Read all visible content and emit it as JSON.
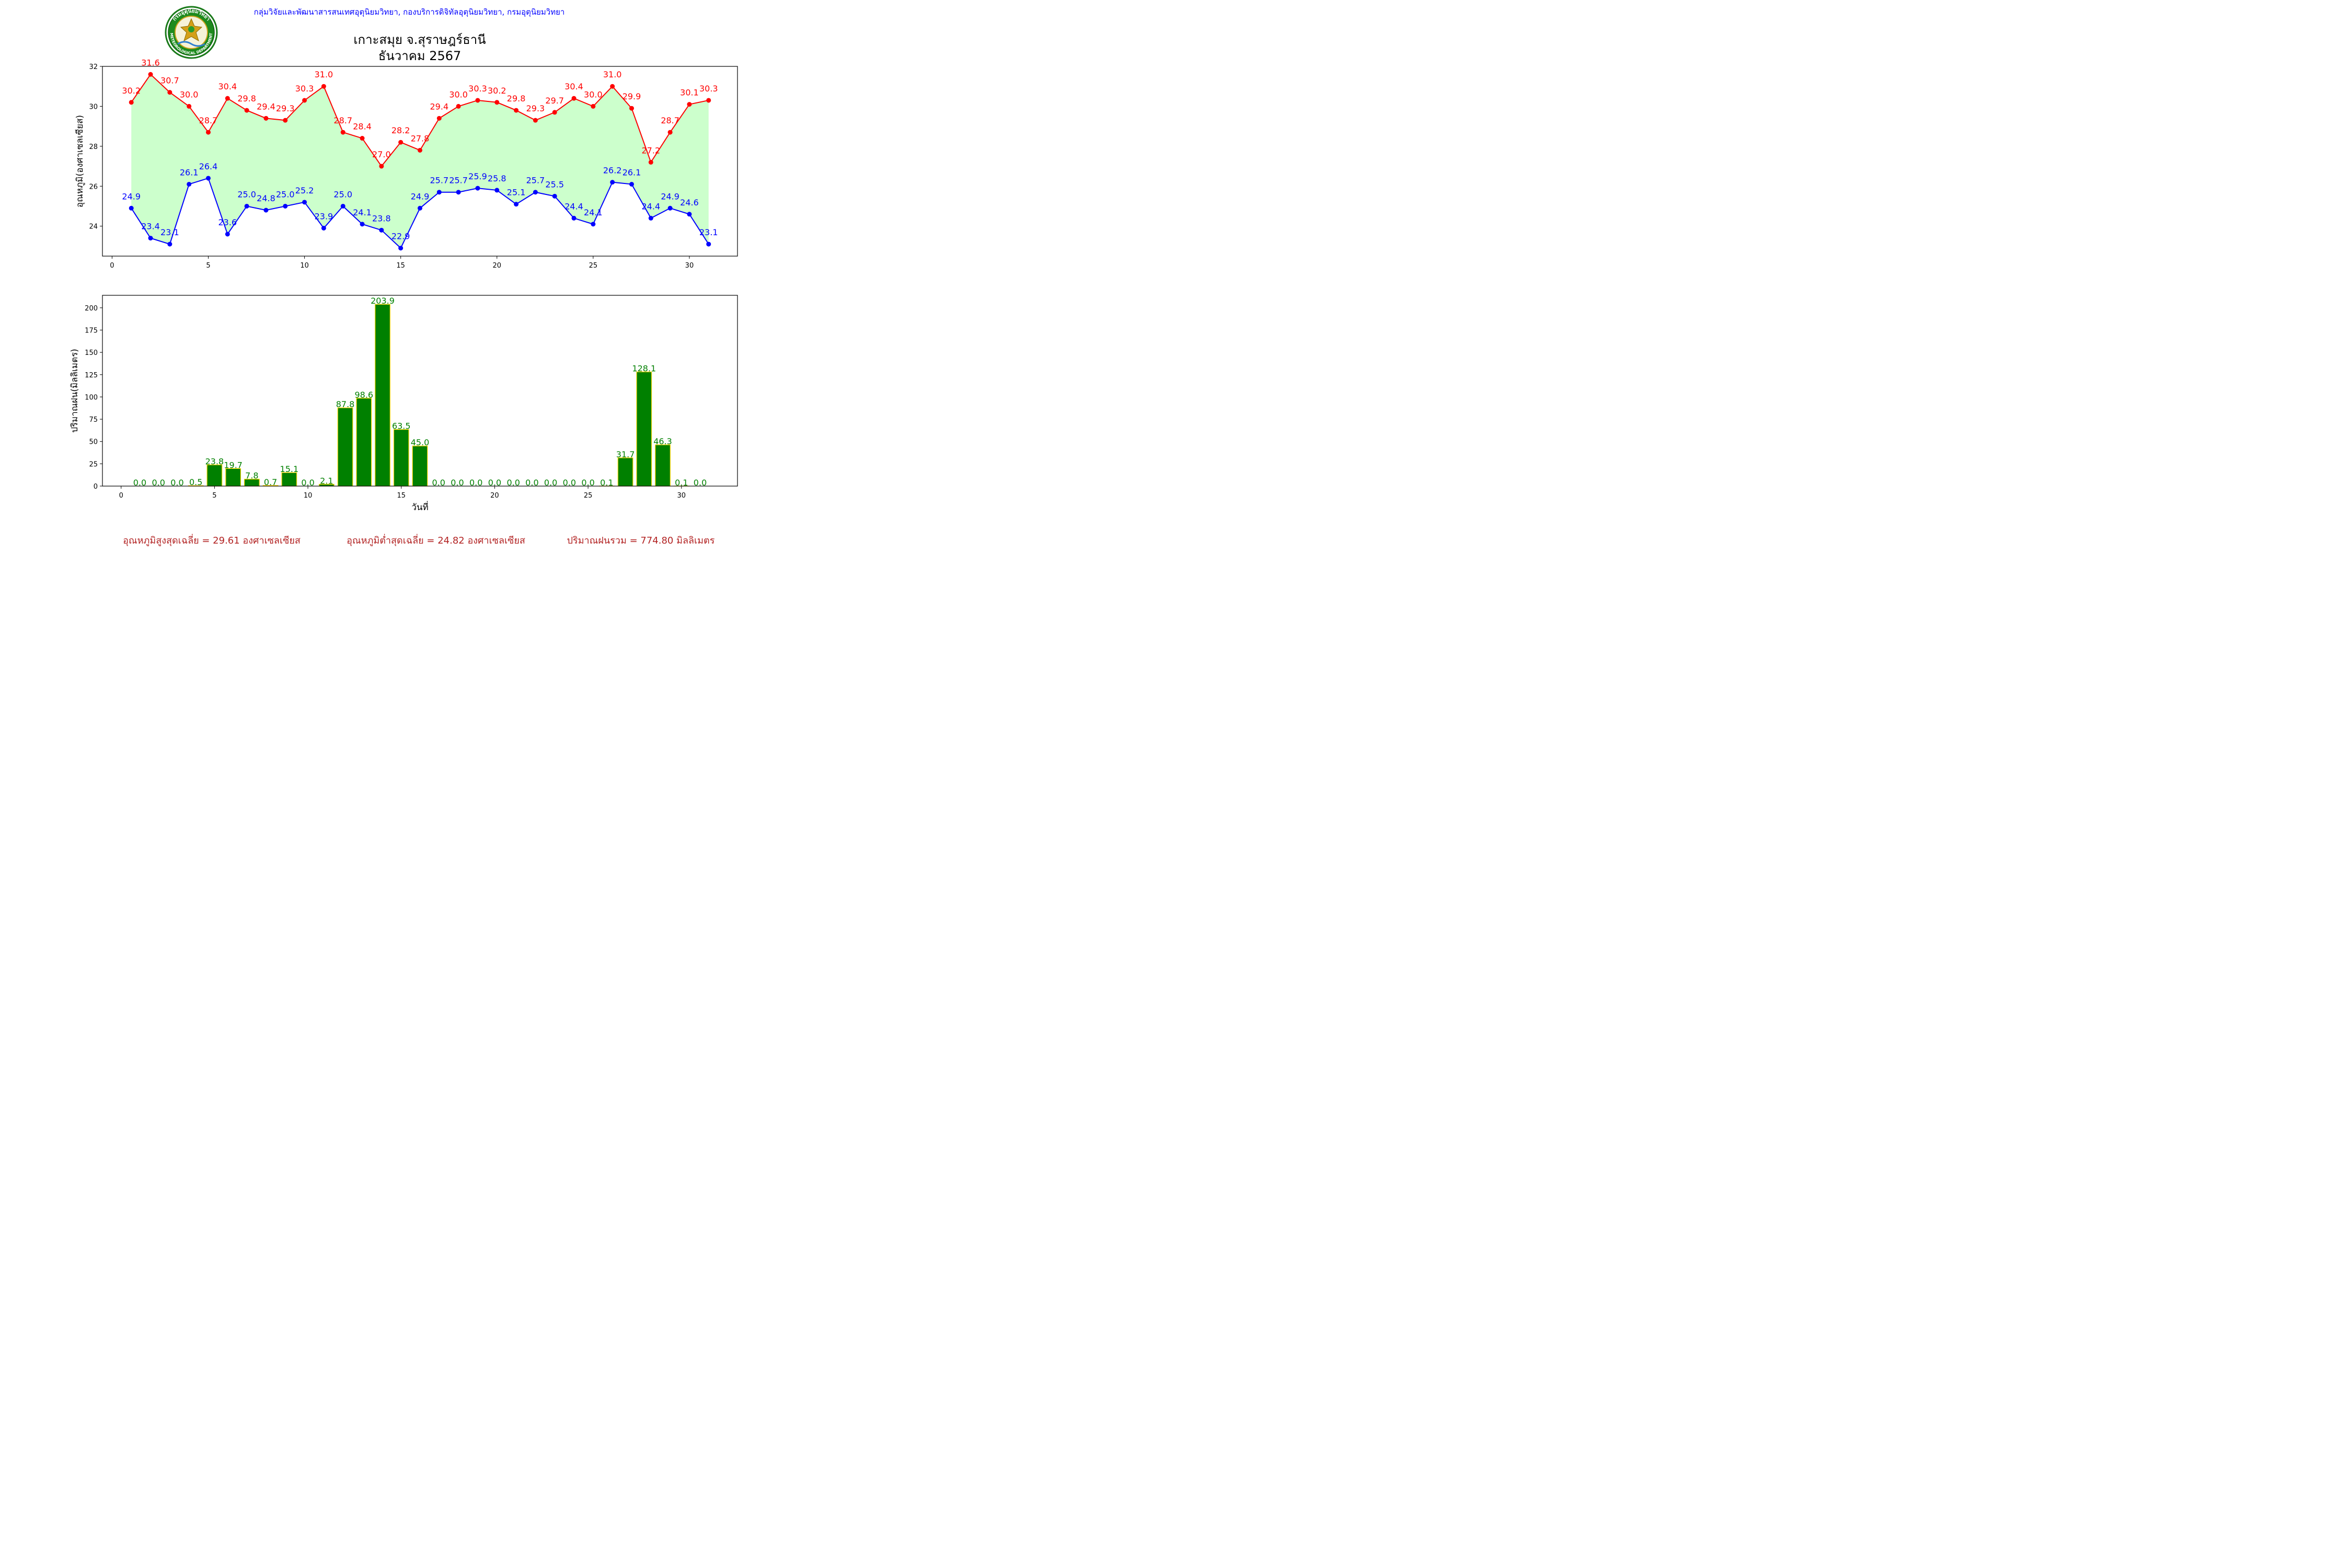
{
  "header": {
    "credit": "กลุ่มวิจัยและพัฒนาสารสนเทศอุตุนิยมวิทยา, กองบริการดิจิทัลอุตุนิยมวิทยา, กรมอุตุนิยมวิทยา",
    "title_line1": "เกาะสมุย จ.สุราษฎร์ธานี",
    "title_line2": "ธันวาคม 2567",
    "logo_text_top": "กรมอุตุนิยมวิทยา",
    "logo_text_bottom": "METEOROLOGICAL DEPARTMENT"
  },
  "chart_data": [
    {
      "type": "line",
      "ylabel": "อุณหภูมิ(องศาเซลเซียส)",
      "xlabel": "",
      "xlim": [
        -0.5,
        32.5
      ],
      "ylim": [
        22.5,
        32
      ],
      "xticks": [
        0,
        5,
        10,
        15,
        20,
        25,
        30
      ],
      "yticks": [
        24,
        26,
        28,
        30,
        32
      ],
      "fill_between": "#ccffcc",
      "x": [
        1,
        2,
        3,
        4,
        5,
        6,
        7,
        8,
        9,
        10,
        11,
        12,
        13,
        14,
        15,
        16,
        17,
        18,
        19,
        20,
        21,
        22,
        23,
        24,
        25,
        26,
        27,
        28,
        29,
        30,
        31
      ],
      "series": [
        {
          "color": "#ff0000",
          "values": [
            30.2,
            31.6,
            30.7,
            30.0,
            28.7,
            30.4,
            29.8,
            29.4,
            29.3,
            30.3,
            31.0,
            28.7,
            28.4,
            27.0,
            28.2,
            27.8,
            29.4,
            30.0,
            30.3,
            30.2,
            29.8,
            29.3,
            29.7,
            30.4,
            30.0,
            31.0,
            29.9,
            27.2,
            28.7,
            30.1,
            30.3
          ]
        },
        {
          "color": "#0000ff",
          "values": [
            24.9,
            23.4,
            23.1,
            26.1,
            26.4,
            23.6,
            25.0,
            24.8,
            25.0,
            25.2,
            23.9,
            25.0,
            24.1,
            23.8,
            22.9,
            24.9,
            25.7,
            25.7,
            25.9,
            25.8,
            25.1,
            25.7,
            25.5,
            24.4,
            24.1,
            26.2,
            26.1,
            24.4,
            24.9,
            24.6,
            23.1
          ]
        }
      ]
    },
    {
      "type": "bar",
      "xlabel": "วันที่",
      "ylabel": "ปริมาณฝน(มิลลิเมตร)",
      "xlim": [
        -1,
        33
      ],
      "ylim": [
        0,
        214
      ],
      "xticks": [
        0,
        5,
        10,
        15,
        20,
        25,
        30
      ],
      "yticks": [
        0,
        25,
        50,
        75,
        100,
        125,
        150,
        175,
        200
      ],
      "bar_color": "#008000",
      "edge_color": "#ffd700",
      "x": [
        1,
        2,
        3,
        4,
        5,
        6,
        7,
        8,
        9,
        10,
        11,
        12,
        13,
        14,
        15,
        16,
        17,
        18,
        19,
        20,
        21,
        22,
        23,
        24,
        25,
        26,
        27,
        28,
        29,
        30,
        31
      ],
      "values": [
        0.0,
        0.0,
        0.0,
        0.5,
        23.8,
        19.7,
        7.8,
        0.7,
        15.1,
        0.0,
        2.1,
        87.8,
        98.6,
        203.9,
        63.5,
        45.0,
        0.0,
        0.0,
        0.0,
        0.0,
        0.0,
        0.0,
        0.0,
        0.0,
        0.0,
        0.1,
        31.7,
        128.1,
        46.3,
        0.1,
        0.0
      ]
    }
  ],
  "summary": {
    "avg_max": "อุณหภูมิสูงสุดเฉลี่ย = 29.61 องศาเซลเซียส",
    "avg_min": "อุณหภูมิต่ำสุดเฉลี่ย = 24.82 องศาเซลเซียส",
    "total_rain": "ปริมาณฝนรวม = 774.80 มิลลิเมตร"
  }
}
